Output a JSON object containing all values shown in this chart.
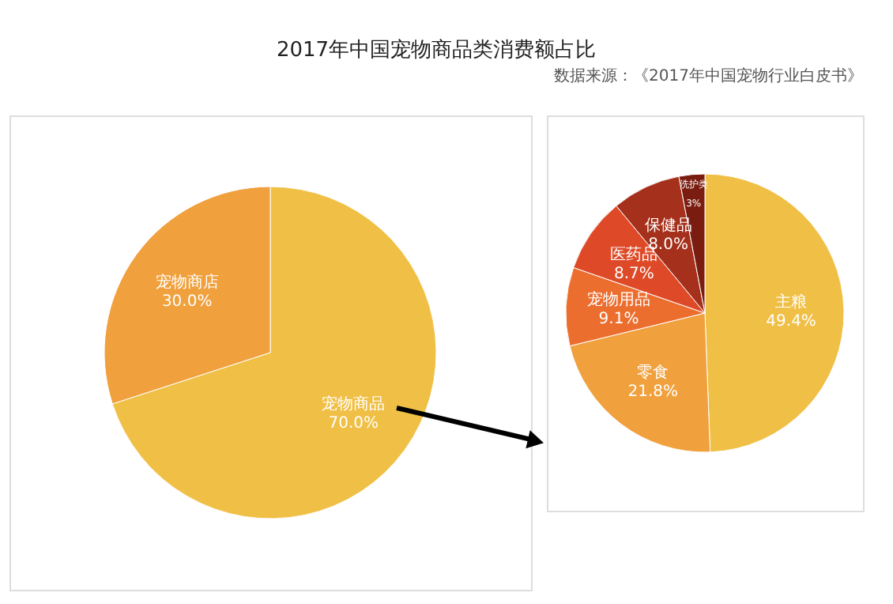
{
  "chart_data": [
    {
      "type": "pie",
      "title": "2017年中国宠物商品类消费额占比",
      "categories": [
        "宠物商品",
        "宠物商店"
      ],
      "values": [
        70.0,
        30.0
      ],
      "value_labels": [
        "70.0%",
        "30.0%"
      ],
      "colors": [
        "#f0bf45",
        "#f0a03c"
      ],
      "legend": false
    },
    {
      "type": "pie",
      "annotations": [
        "数据来源：《2017年中国宠物行业白皮书》"
      ],
      "categories": [
        "主粮",
        "零食",
        "宠物用品",
        "医药品",
        "保健品",
        "洗护类"
      ],
      "values": [
        49.4,
        21.8,
        9.1,
        8.7,
        8.0,
        3
      ],
      "value_labels": [
        "49.4%",
        "21.8%",
        "9.1%",
        "8.7%",
        "8.0%",
        "3%"
      ],
      "colors": [
        "#f0bf45",
        "#f0a03c",
        "#ec6e2f",
        "#de4a28",
        "#a5301b",
        "#7a1c10"
      ],
      "legend": false
    }
  ]
}
